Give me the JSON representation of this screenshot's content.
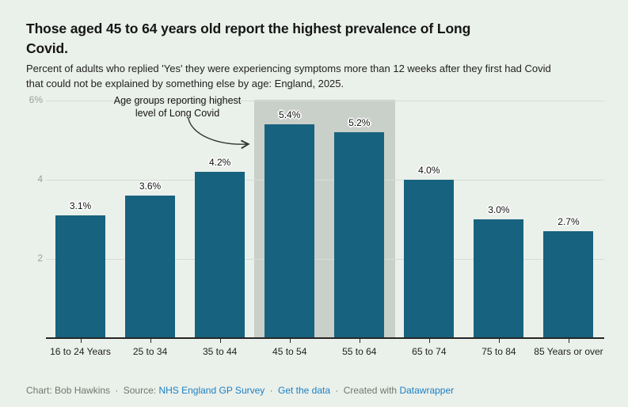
{
  "header": {
    "title_line1": "Those aged 45 to 64 years old report the highest prevalence of Long",
    "title_line2": "Covid.",
    "subtitle_line1": "Percent of adults who replied 'Yes' they were experiencing symptoms more than 12 weeks after they first had Covid",
    "subtitle_line2": "that could not be explained by something else by age: England, 2025."
  },
  "chart_data": {
    "type": "bar",
    "title": "Those aged 45 to 64 years old report the highest prevalence of Long Covid.",
    "subtitle": "Percent of adults who replied 'Yes' they were experiencing symptoms more than 12 weeks after they first had Covid that could not be explained by something else by age: England, 2025.",
    "categories": [
      "16 to 24 Years",
      "25 to 34",
      "35 to 44",
      "45 to 54",
      "55 to 64",
      "65 to 74",
      "75 to 84",
      "85 Years or over"
    ],
    "values": [
      3.1,
      3.6,
      4.2,
      5.4,
      5.2,
      4.0,
      3.0,
      2.7
    ],
    "value_labels": [
      "3.1%",
      "3.6%",
      "4.2%",
      "5.4%",
      "5.2%",
      "4.0%",
      "3.0%",
      "2.7%"
    ],
    "xlabel": "",
    "ylabel": "",
    "ylim": [
      0,
      6
    ],
    "yticks": [
      2,
      4,
      6
    ],
    "ytick_labels": [
      "2",
      "4",
      "6%"
    ],
    "grid": true,
    "legend": "none",
    "bar_color": "#17627e",
    "highlight": {
      "categories": [
        "45 to 54",
        "55 to 64"
      ],
      "color": "#c9cfc9"
    },
    "annotation": {
      "line1": "Age groups reporting highest",
      "line2": "level of Long Covid"
    }
  },
  "footer": {
    "chart_credit": "Chart: Bob Hawkins",
    "source_label": "Source:",
    "source_link": "NHS England GP Survey",
    "get_data_link": "Get the data",
    "created_with": "Created with",
    "datawrapper_link": "Datawrapper",
    "separator": "·"
  },
  "colors": {
    "background": "#eaf0ea",
    "bar": "#17627e",
    "highlight_band": "#c9cfc9",
    "gridline": "#d7dcd7",
    "axis_line": "#262626",
    "axis_tick_text": "#9aa19a",
    "link_blue": "#1d80c4",
    "footer_gray": "#6e786e"
  }
}
